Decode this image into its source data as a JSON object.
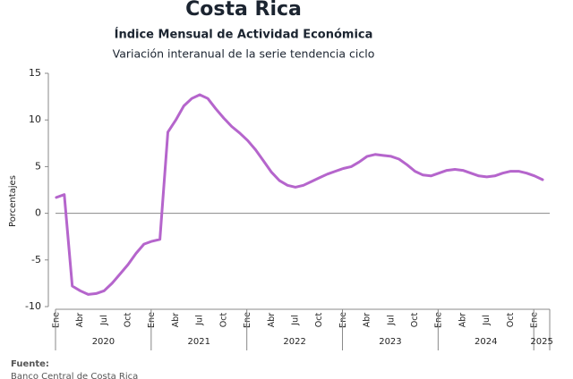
{
  "chart_data": {
    "type": "line",
    "title": "Costa Rica",
    "subtitle": "Índice Mensual de Actividad Económica",
    "description": "Variación interanual de la serie tendencia ciclo",
    "y_label": "Porcentajes",
    "ylim": [
      -10,
      15
    ],
    "yticks": [
      -10,
      -5,
      0,
      5,
      10,
      15
    ],
    "zero_line": true,
    "categories": [
      "Ene",
      null,
      null,
      "Abr",
      null,
      null,
      "Jul",
      null,
      null,
      "Oct",
      null,
      null,
      "Ene",
      null,
      null,
      "Abr",
      null,
      null,
      "Jul",
      null,
      null,
      "Oct",
      null,
      null,
      "Ene",
      null,
      null,
      "Abr",
      null,
      null,
      "Jul",
      null,
      null,
      "Oct",
      null,
      null,
      "Ene",
      null,
      null,
      "Abr",
      null,
      null,
      "Jul",
      null,
      null,
      "Oct",
      null,
      null,
      "Ene",
      null,
      null,
      "Abr",
      null,
      null,
      "Jul",
      null,
      null,
      "Oct",
      null,
      null,
      "Ene",
      null
    ],
    "year_labels": [
      "2020",
      "2021",
      "2022",
      "2023",
      "2024",
      "2025"
    ],
    "series": [
      {
        "name": "Variación interanual",
        "color": "#b565cc",
        "values": [
          1.7,
          2.0,
          -7.8,
          -8.3,
          -8.7,
          -8.6,
          -8.3,
          -7.5,
          -6.5,
          -5.5,
          -4.3,
          -3.3,
          -3.0,
          -2.8,
          8.7,
          10.0,
          11.5,
          12.3,
          12.7,
          12.3,
          11.2,
          10.2,
          9.3,
          8.6,
          7.8,
          6.8,
          5.6,
          4.4,
          3.5,
          3.0,
          2.8,
          3.0,
          3.4,
          3.8,
          4.2,
          4.5,
          4.8,
          5.0,
          5.5,
          6.1,
          6.3,
          6.2,
          6.1,
          5.8,
          5.2,
          4.5,
          4.1,
          4.0,
          4.3,
          4.6,
          4.7,
          4.6,
          4.3,
          4.0,
          3.9,
          4.0,
          4.3,
          4.5,
          4.5,
          4.3,
          4.0,
          3.6
        ]
      }
    ],
    "source_label": "Fuente:",
    "source": "Banco Central de Costa Rica"
  }
}
